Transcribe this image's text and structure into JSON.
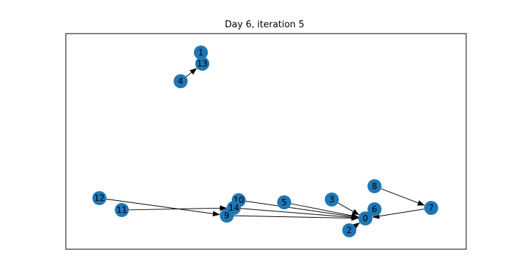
{
  "title": "Day 6, iteration 5",
  "colors": {
    "node": "#1f77b4",
    "edge": "#000000",
    "frame": "#000000"
  },
  "nodes": [
    {
      "id": "0"
    },
    {
      "id": "1"
    },
    {
      "id": "2"
    },
    {
      "id": "3"
    },
    {
      "id": "4"
    },
    {
      "id": "5"
    },
    {
      "id": "6"
    },
    {
      "id": "7"
    },
    {
      "id": "8"
    },
    {
      "id": "9"
    },
    {
      "id": "10"
    },
    {
      "id": "11"
    },
    {
      "id": "12"
    },
    {
      "id": "13"
    },
    {
      "id": "14"
    }
  ],
  "edges": [
    {
      "from": "4",
      "to": "13"
    },
    {
      "from": "12",
      "to": "9"
    },
    {
      "from": "11",
      "to": "14"
    },
    {
      "from": "10",
      "to": "0"
    },
    {
      "from": "14",
      "to": "0"
    },
    {
      "from": "9",
      "to": "0"
    },
    {
      "from": "5",
      "to": "0"
    },
    {
      "from": "3",
      "to": "0"
    },
    {
      "from": "2",
      "to": "0"
    },
    {
      "from": "7",
      "to": "0"
    },
    {
      "from": "8",
      "to": "7"
    }
  ]
}
